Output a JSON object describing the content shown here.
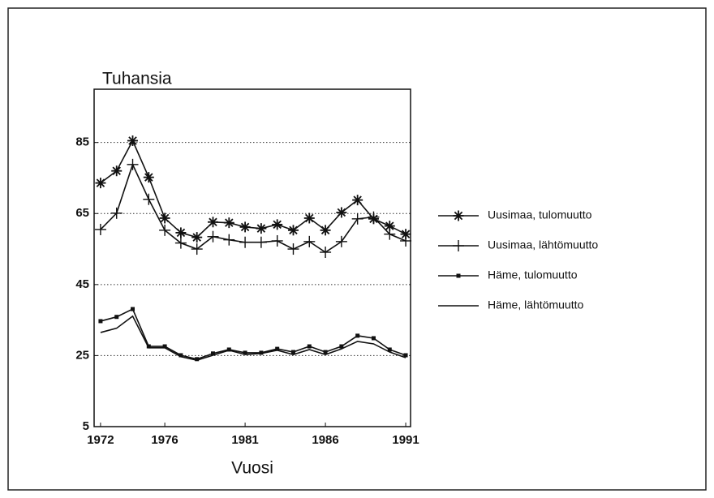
{
  "chart_data": {
    "type": "line",
    "y_label": "Tuhansia",
    "x_label": "Vuosi",
    "x": [
      1972,
      1973,
      1974,
      1975,
      1976,
      1977,
      1978,
      1979,
      1980,
      1981,
      1982,
      1983,
      1984,
      1985,
      1986,
      1987,
      1988,
      1989,
      1990,
      1991
    ],
    "xlim": [
      1971.6,
      1991.3
    ],
    "xticks": [
      1972,
      1976,
      1981,
      1986,
      1991
    ],
    "ylim": [
      5,
      100
    ],
    "yticks": [
      5,
      25,
      45,
      65,
      85
    ],
    "grid": true,
    "legend": "right",
    "series": [
      {
        "name": "Uusimaa, tulomuutto",
        "color": "#111111",
        "marker": "asterisk",
        "values": [
          73.6,
          77,
          85.5,
          75.2,
          63.7,
          59.6,
          58.3,
          62.6,
          62.4,
          61.2,
          60.8,
          61.9,
          60.3,
          63.7,
          60.3,
          65.3,
          68.8,
          63.5,
          61.5,
          59.2
        ]
      },
      {
        "name": "Uusimaa, lähtömuutto",
        "color": "#111111",
        "marker": "plus",
        "values": [
          60.5,
          65.1,
          78.8,
          69,
          60.3,
          56.7,
          55,
          58.5,
          57.6,
          56.9,
          56.9,
          57.3,
          55,
          57.1,
          54.1,
          57.1,
          63.5,
          64,
          59.2,
          57.3
        ]
      },
      {
        "name": "Häme, tulomuutto",
        "color": "#111111",
        "marker": "dot",
        "values": [
          34.7,
          35.9,
          38.1,
          27.6,
          27.6,
          25.1,
          24,
          25.6,
          26.7,
          25.8,
          25.8,
          26.9,
          26,
          27.6,
          26,
          27.6,
          30.6,
          29.9,
          26.7,
          25.1
        ]
      },
      {
        "name": "Häme, lähtömuutto",
        "color": "#111111",
        "marker": "none",
        "values": [
          31.5,
          32.7,
          36.1,
          27.2,
          27.2,
          24.7,
          23.7,
          25.1,
          26.5,
          25.3,
          25.6,
          26.5,
          25.3,
          26.7,
          25.3,
          26.9,
          29,
          28.3,
          26,
          24.4
        ]
      }
    ]
  }
}
